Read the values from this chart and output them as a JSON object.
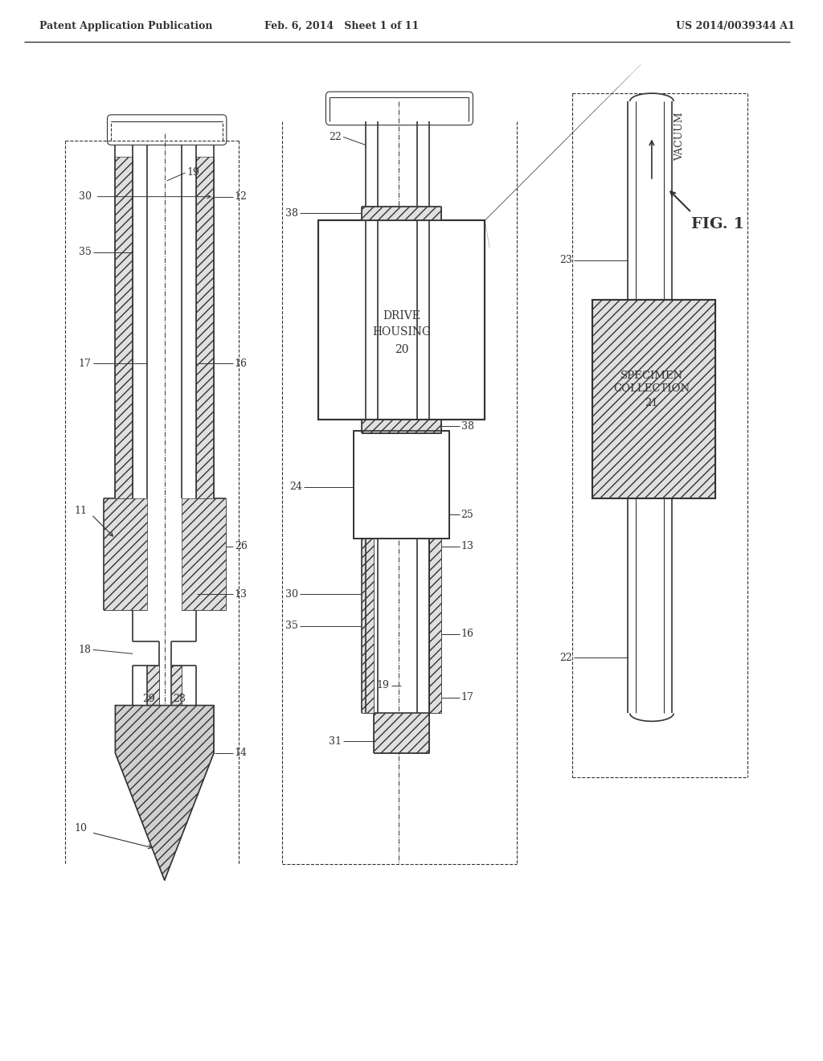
{
  "title": "",
  "header_left": "Patent Application Publication",
  "header_mid": "Feb. 6, 2014   Sheet 1 of 11",
  "header_right": "US 2014/0039344 A1",
  "fig_label": "FIG. 1",
  "background": "#ffffff",
  "line_color": "#333333",
  "hatch_color": "#555555",
  "label_fontsize": 9,
  "header_fontsize": 9
}
